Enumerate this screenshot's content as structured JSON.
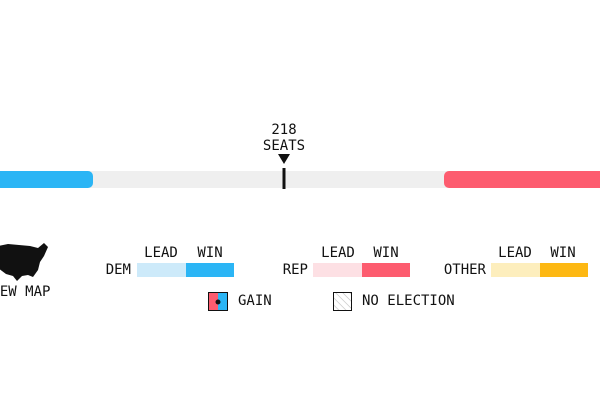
{
  "marker": {
    "count": "218",
    "label": "SEATS"
  },
  "map_link": "VIEW MAP",
  "legend": {
    "groups": [
      {
        "name": "DEM",
        "lead": "LEAD",
        "win": "WIN"
      },
      {
        "name": "REP",
        "lead": "LEAD",
        "win": "WIN"
      },
      {
        "name": "OTHER",
        "lead": "LEAD",
        "win": "WIN"
      }
    ],
    "gain": "GAIN",
    "no_election": "NO ELECTION"
  }
}
